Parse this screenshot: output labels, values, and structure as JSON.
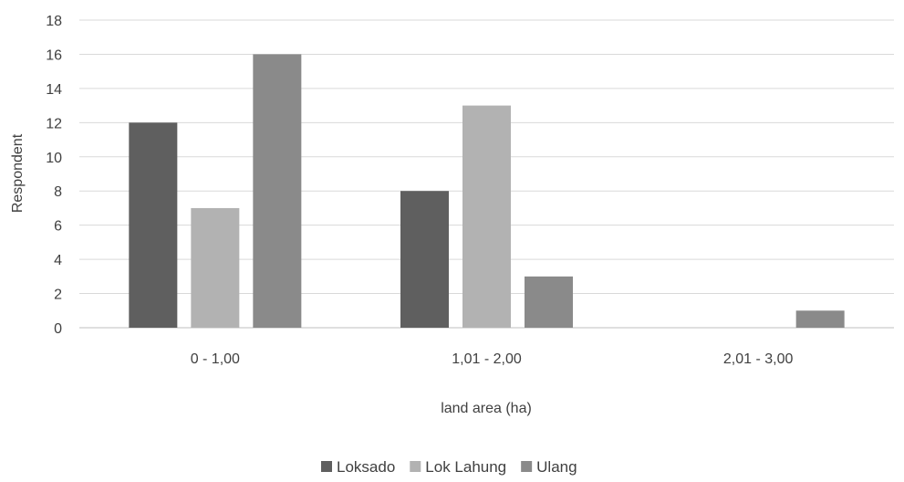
{
  "chart_data": {
    "type": "bar",
    "title": "",
    "xlabel": "land area (ha)",
    "ylabel": "Respondent",
    "categories": [
      "0 - 1,00",
      "1,01 - 2,00",
      "2,01 - 3,00"
    ],
    "series": [
      {
        "name": "Loksado",
        "values": [
          12,
          8,
          0
        ],
        "color": "#5f5f5f"
      },
      {
        "name": "Lok Lahung",
        "values": [
          7,
          13,
          0
        ],
        "color": "#b2b2b2"
      },
      {
        "name": "Ulang",
        "values": [
          16,
          3,
          1
        ],
        "color": "#8a8a8a"
      }
    ],
    "yticks": [
      "0",
      "2",
      "4",
      "6",
      "8",
      "10",
      "12",
      "14",
      "16",
      "18"
    ],
    "ylim": [
      0,
      18
    ],
    "grid": true,
    "legend_position": "bottom"
  }
}
